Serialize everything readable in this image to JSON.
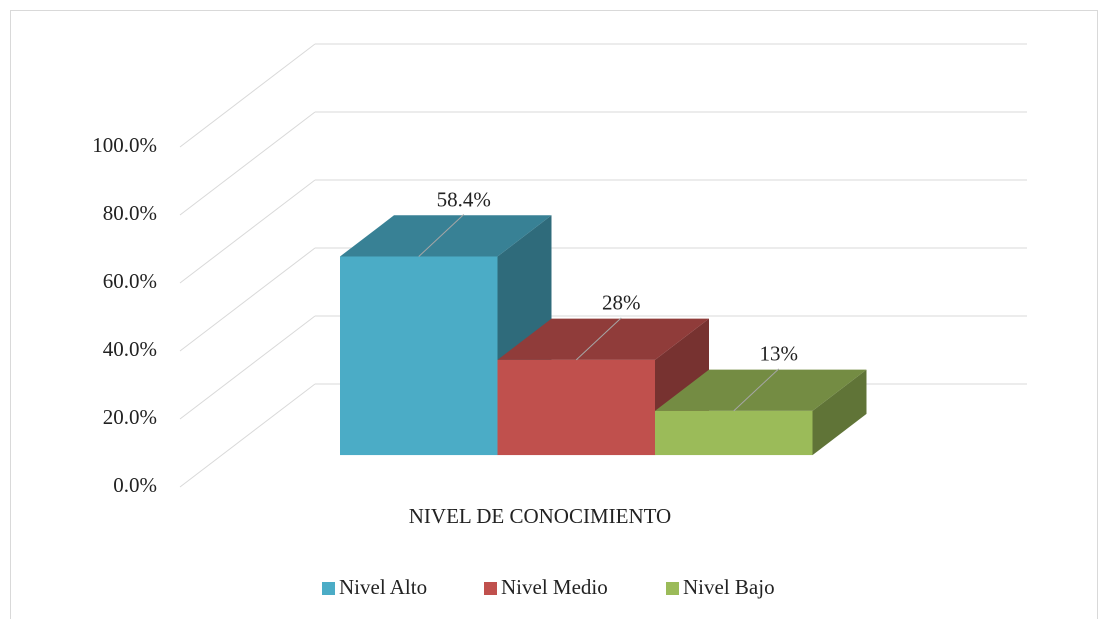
{
  "chart_data": {
    "type": "bar3d",
    "x_label": "NIVEL DE CONOCIMIENTO",
    "series": [
      {
        "name": "Nivel Alto",
        "color": "#4bacc6",
        "values": [
          58.4
        ],
        "value_labels": [
          "58.4%"
        ]
      },
      {
        "name": "Nivel Medio",
        "color": "#c0504d",
        "values": [
          28
        ],
        "value_labels": [
          "28%"
        ]
      },
      {
        "name": "Nivel Bajo",
        "color": "#9bbb59",
        "values": [
          13
        ],
        "value_labels": [
          "13%"
        ]
      }
    ],
    "ylim": [
      0,
      100
    ],
    "yticks": [
      {
        "value": 0,
        "label": "0.0%"
      },
      {
        "value": 20,
        "label": "20.0%"
      },
      {
        "value": 40,
        "label": "40.0%"
      },
      {
        "value": 60,
        "label": "60.0%"
      },
      {
        "value": 80,
        "label": "80.0%"
      },
      {
        "value": 100,
        "label": "100.0%"
      }
    ],
    "grid": true,
    "legend": "bottom"
  }
}
